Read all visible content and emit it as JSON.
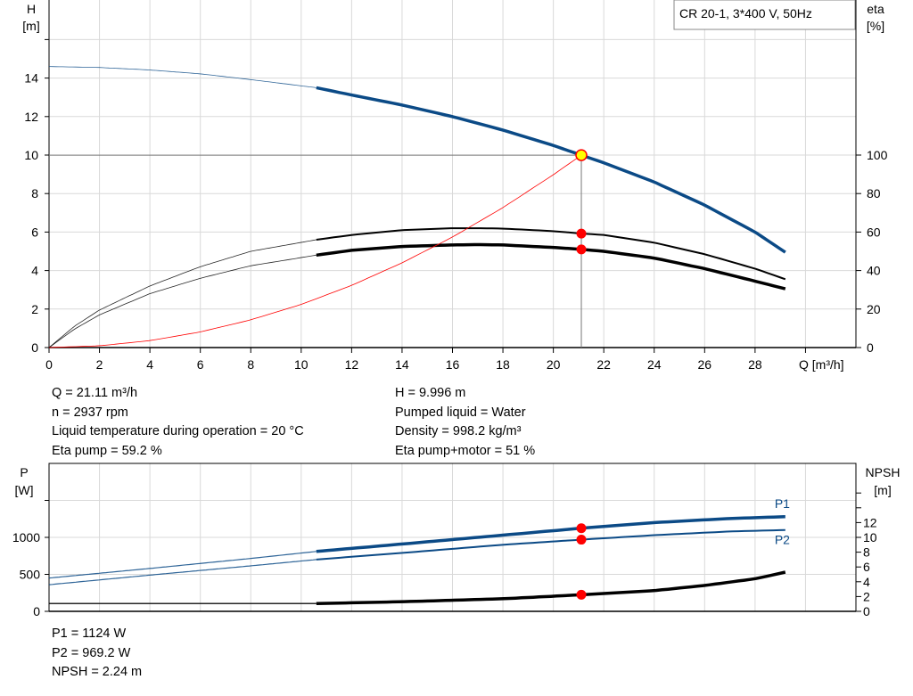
{
  "chart_data": [
    {
      "type": "line",
      "title": "CR 20-1, 3*400 V, 50Hz",
      "xlabel": "Q [m³/h]",
      "ylabel": "H\n[m]",
      "ylabel_left_lines": [
        "H",
        "[m]"
      ],
      "ylabel_right_lines": [
        "eta",
        "[%]"
      ],
      "xlim": [
        0,
        32
      ],
      "ylim": [
        0,
        18
      ],
      "y2lim": [
        0,
        180
      ],
      "grid": true,
      "x_ticks": [
        0,
        2,
        4,
        6,
        8,
        10,
        12,
        14,
        16,
        18,
        20,
        22,
        24,
        26,
        28
      ],
      "y_ticks": [
        0,
        2,
        4,
        6,
        8,
        10,
        12,
        14
      ],
      "y2_ticks": [
        0,
        20,
        40,
        60,
        80,
        100
      ],
      "legend": "top-right",
      "duty_point": {
        "Q": 21.11,
        "H": 9.996,
        "eta_pump": 59.2,
        "eta_pump_motor": 51
      },
      "series": [
        {
          "key": "H",
          "axis": "left",
          "color": "#0b4a86",
          "x": [
            0,
            2,
            4,
            6,
            8,
            10.6,
            12,
            14,
            16,
            18,
            20,
            21.11,
            22,
            24,
            26,
            28,
            29.2
          ],
          "values": [
            14.6,
            14.55,
            14.42,
            14.22,
            13.92,
            13.5,
            13.12,
            12.6,
            12.0,
            11.3,
            10.5,
            9.996,
            9.6,
            8.6,
            7.4,
            6.0,
            4.95
          ]
        },
        {
          "key": "eta_pump",
          "axis": "right",
          "color": "#000000",
          "x": [
            0,
            1,
            2,
            4,
            6,
            8,
            10.6,
            12,
            14,
            16,
            17,
            18,
            20,
            21.11,
            22,
            24,
            26,
            28,
            29.2
          ],
          "values": [
            0,
            11,
            19.5,
            32,
            42,
            50,
            56,
            58.5,
            61,
            62,
            62,
            61.8,
            60.5,
            59.2,
            58.5,
            54.5,
            48.5,
            41,
            35.5
          ]
        },
        {
          "key": "eta_pump_motor",
          "axis": "right",
          "color": "#000000",
          "x": [
            0,
            1,
            2,
            4,
            6,
            8,
            10.6,
            12,
            14,
            16,
            17,
            18,
            20,
            21.11,
            22,
            24,
            26,
            28,
            29.2
          ],
          "values": [
            0,
            9.5,
            17,
            28,
            36,
            42.5,
            48,
            50.5,
            52.5,
            53.3,
            53.5,
            53.3,
            52,
            51,
            50,
            46.5,
            41,
            34.5,
            30.5
          ]
        },
        {
          "key": "system_curve",
          "axis": "left",
          "color": "#ff0000",
          "x": [
            0,
            2,
            4,
            6,
            8,
            10,
            12,
            14,
            16,
            18,
            20,
            21.11
          ],
          "values": [
            0,
            0.09,
            0.36,
            0.81,
            1.44,
            2.24,
            3.23,
            4.4,
            5.74,
            7.27,
            8.98,
            9.996
          ]
        }
      ]
    },
    {
      "type": "line",
      "ylabel_left_lines": [
        "P",
        "[W]"
      ],
      "ylabel_right_lines": [
        "NPSH",
        "[m]"
      ],
      "xlim": [
        0,
        32
      ],
      "ylim": [
        0,
        2000
      ],
      "y2lim": [
        0,
        20
      ],
      "grid": true,
      "y_ticks": [
        0,
        500,
        1000
      ],
      "y2_ticks": [
        0,
        2,
        4,
        6,
        8,
        10,
        12
      ],
      "duty_point": {
        "Q": 21.11,
        "P1": 1124,
        "P2": 969.2,
        "NPSH": 2.24
      },
      "series": [
        {
          "name": "P1",
          "axis": "left",
          "color": "#0b4a86",
          "x": [
            0,
            4,
            8,
            10.6,
            14,
            18,
            21.11,
            24,
            27,
            29.2
          ],
          "values": [
            450,
            580,
            715,
            810,
            910,
            1030,
            1124,
            1200,
            1255,
            1280
          ]
        },
        {
          "name": "P2",
          "axis": "left",
          "color": "#0b4a86",
          "x": [
            0,
            4,
            8,
            10.6,
            14,
            18,
            21.11,
            24,
            27,
            29.2
          ],
          "values": [
            360,
            490,
            615,
            700,
            790,
            900,
            969.2,
            1030,
            1080,
            1100
          ]
        },
        {
          "key": "NPSH",
          "axis": "right",
          "color": "#000000",
          "x": [
            0,
            10.6,
            14,
            18,
            21.11,
            24,
            26,
            28,
            29.2
          ],
          "values": [
            1.05,
            1.05,
            1.3,
            1.7,
            2.24,
            2.8,
            3.5,
            4.4,
            5.3
          ]
        }
      ]
    }
  ],
  "info_top_left": [
    "Q = 21.11 m³/h",
    "n = 2937 rpm",
    "Liquid temperature during operation = 20 °C",
    "Eta pump = 59.2 %"
  ],
  "info_top_right": [
    "H = 9.996 m",
    "Pumped liquid = Water",
    "Density = 998.2 kg/m³",
    "Eta pump+motor = 51 %"
  ],
  "info_bottom": [
    "P1 = 1124 W",
    "P2 = 969.2 W",
    "NPSH = 2.24 m"
  ],
  "colors": {
    "blue": "#0b4a86",
    "red": "#ff0000",
    "duty_fill": "#ffff00",
    "grid": "#d9d9d9"
  }
}
